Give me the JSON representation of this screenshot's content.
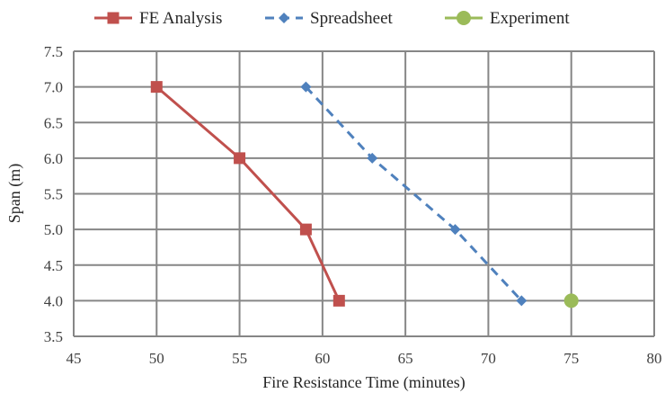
{
  "chart_data": {
    "type": "line",
    "xlabel": "Fire Resistance Time (minutes)",
    "ylabel": "Span (m)",
    "xlim": [
      45,
      80
    ],
    "ylim": [
      3.5,
      7.5
    ],
    "x_ticks": [
      "45",
      "50",
      "55",
      "60",
      "65",
      "70",
      "75",
      "80"
    ],
    "y_ticks": [
      "3.5",
      "4.0",
      "4.5",
      "5.0",
      "5.5",
      "6.0",
      "6.5",
      "7.0",
      "7.5"
    ],
    "grid": true,
    "legend_position": "top",
    "series": [
      {
        "name": "FE Analysis",
        "color": "#C0504D",
        "line_style": "solid",
        "marker": "square",
        "points": [
          [
            50,
            7.0
          ],
          [
            55,
            6.0
          ],
          [
            59,
            5.0
          ],
          [
            61,
            4.0
          ]
        ]
      },
      {
        "name": "Spreadsheet",
        "color": "#4F81BD",
        "line_style": "dashed",
        "marker": "diamond",
        "points": [
          [
            59,
            7.0
          ],
          [
            63,
            6.0
          ],
          [
            68,
            5.0
          ],
          [
            72,
            4.0
          ]
        ]
      },
      {
        "name": "Experiment",
        "color": "#9BBB59",
        "line_style": "none",
        "marker": "circle",
        "points": [
          [
            75,
            4.0
          ]
        ]
      }
    ]
  }
}
